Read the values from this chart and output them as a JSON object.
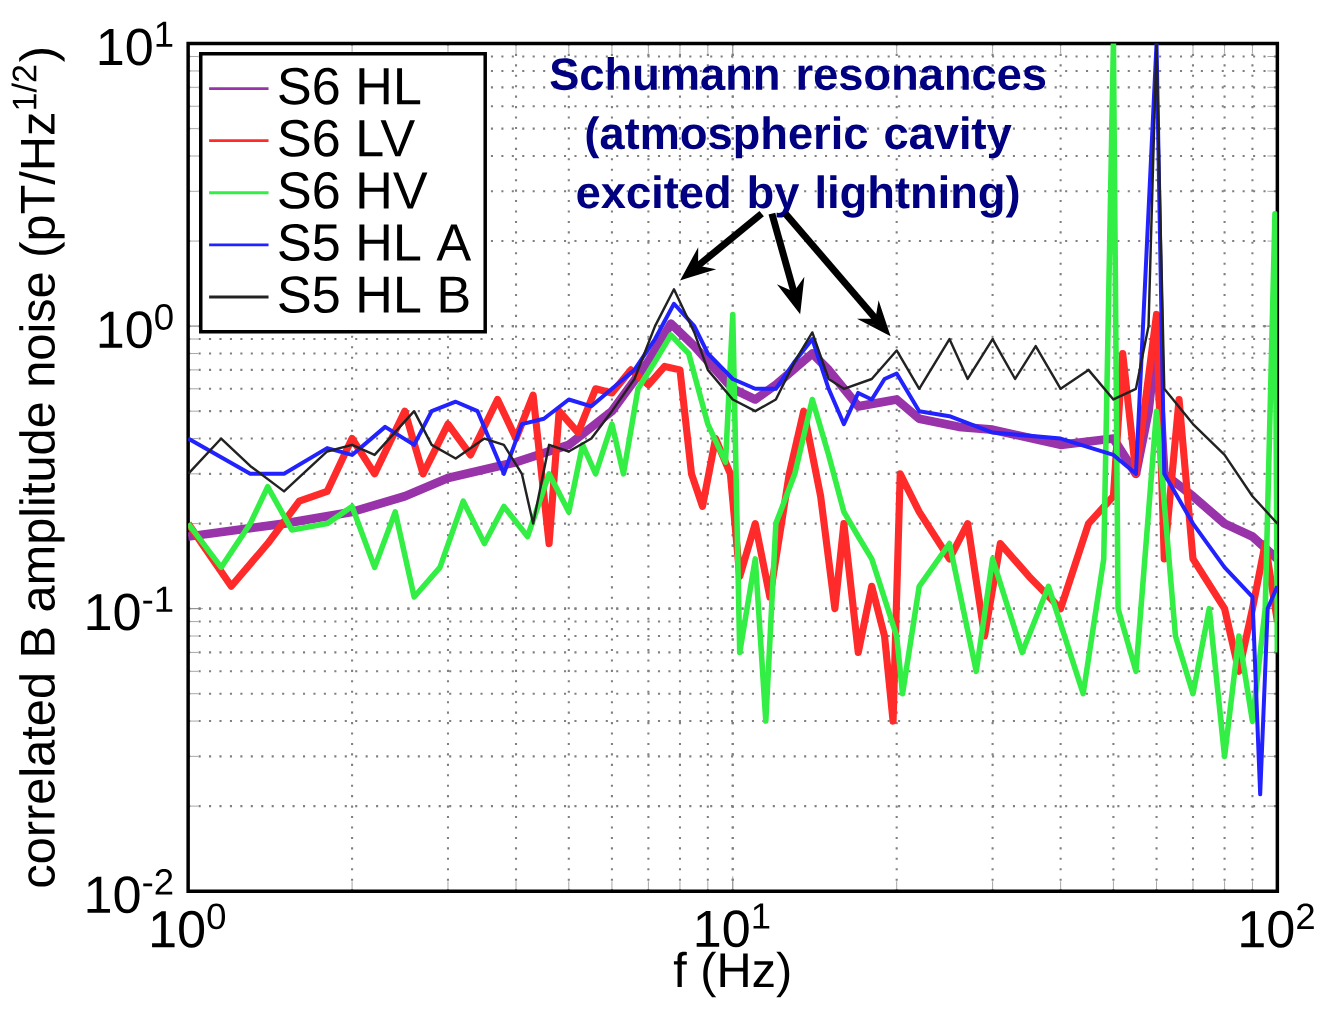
{
  "chart_data": {
    "type": "line",
    "log": "xy",
    "grid": true,
    "legend": "top left",
    "xlabel": "f (Hz)",
    "ylabel": "correlated B amplitude noise (pT/Hz$^{1/2}$)",
    "xlim": [
      1,
      100
    ],
    "ylim": [
      0.01,
      10
    ],
    "xticks": [
      {
        "value": 1,
        "label": "10$^{0}$"
      },
      {
        "value": 10,
        "label": "10$^{1}$"
      },
      {
        "value": 100,
        "label": "10$^{2}$"
      }
    ],
    "yticks": [
      {
        "value": 0.01,
        "label": "10$^{-2}$"
      },
      {
        "value": 0.1,
        "label": "10$^{-1}$"
      },
      {
        "value": 1,
        "label": "10$^{0}$"
      },
      {
        "value": 10,
        "label": "10$^{1}$"
      }
    ],
    "annotations": [
      "Schumann resonances (atmospheric cavity excited by lightning)"
    ],
    "series": [
      {
        "name": "S6 HL",
        "color": "#9933aa",
        "x": [
          1,
          1.5,
          2,
          2.5,
          3,
          4,
          5,
          6,
          7,
          7.7,
          8.5,
          10,
          11,
          12,
          14,
          15,
          17,
          20,
          22,
          26,
          30,
          40,
          50,
          55,
          58,
          60,
          62,
          70,
          80,
          90,
          100
        ],
        "values": [
          0.18,
          0.2,
          0.22,
          0.25,
          0.29,
          0.33,
          0.38,
          0.5,
          0.75,
          1.02,
          0.85,
          0.6,
          0.55,
          0.62,
          0.8,
          0.7,
          0.52,
          0.55,
          0.47,
          0.44,
          0.43,
          0.38,
          0.4,
          0.3,
          0.5,
          0.9,
          0.3,
          0.25,
          0.2,
          0.18,
          0.15
        ]
      },
      {
        "name": "S6 LV",
        "color": "#ff2a2a",
        "x": [
          1,
          1.2,
          1.4,
          1.6,
          1.8,
          2,
          2.2,
          2.5,
          2.7,
          3,
          3.3,
          3.7,
          4,
          4.3,
          4.6,
          4.8,
          5.2,
          5.6,
          6,
          6.5,
          7,
          7.5,
          8,
          8.4,
          8.8,
          9.3,
          9.9,
          10.3,
          11,
          11.7,
          12.7,
          13.5,
          14.5,
          15.4,
          16,
          17,
          18,
          19,
          19.7,
          20.3,
          22,
          25,
          27,
          29,
          31,
          35,
          40,
          45,
          50,
          52,
          55,
          60,
          62,
          66,
          70,
          80,
          85,
          90,
          95,
          100
        ],
        "values": [
          0.2,
          0.12,
          0.17,
          0.24,
          0.26,
          0.4,
          0.3,
          0.5,
          0.3,
          0.45,
          0.35,
          0.55,
          0.4,
          0.57,
          0.17,
          0.5,
          0.42,
          0.6,
          0.58,
          0.7,
          0.62,
          0.72,
          0.7,
          0.3,
          0.23,
          0.4,
          0.3,
          0.13,
          0.2,
          0.11,
          0.3,
          0.5,
          0.25,
          0.1,
          0.2,
          0.07,
          0.12,
          0.08,
          0.04,
          0.3,
          0.22,
          0.15,
          0.2,
          0.08,
          0.17,
          0.13,
          0.1,
          0.2,
          0.25,
          0.8,
          0.3,
          1.1,
          0.15,
          0.55,
          0.15,
          0.1,
          0.06,
          0.1,
          0.17,
          0.09
        ]
      },
      {
        "name": "S6 HV",
        "color": "#33ee44",
        "x": [
          1,
          1.15,
          1.3,
          1.4,
          1.55,
          1.8,
          2,
          2.2,
          2.4,
          2.6,
          2.9,
          3.2,
          3.5,
          3.8,
          4.2,
          4.6,
          5,
          5.3,
          5.6,
          6,
          6.3,
          6.7,
          7.2,
          7.7,
          8.3,
          9,
          9.7,
          10,
          10.3,
          11,
          11.5,
          12,
          13,
          14,
          15,
          16,
          17,
          18,
          20,
          20.5,
          22,
          25,
          28,
          30,
          34,
          38,
          44,
          48,
          50,
          51,
          55,
          60,
          65,
          70,
          75,
          80,
          85,
          90,
          95,
          99,
          100
        ],
        "values": [
          0.2,
          0.14,
          0.2,
          0.27,
          0.19,
          0.2,
          0.23,
          0.14,
          0.22,
          0.11,
          0.14,
          0.24,
          0.17,
          0.23,
          0.18,
          0.3,
          0.22,
          0.38,
          0.3,
          0.45,
          0.3,
          0.6,
          0.75,
          0.93,
          0.8,
          0.45,
          0.33,
          1.1,
          0.07,
          0.15,
          0.04,
          0.2,
          0.3,
          0.55,
          0.35,
          0.22,
          0.18,
          0.15,
          0.08,
          0.05,
          0.12,
          0.17,
          0.06,
          0.15,
          0.07,
          0.12,
          0.05,
          0.15,
          10,
          0.1,
          0.06,
          0.5,
          0.08,
          0.05,
          0.1,
          0.03,
          0.08,
          0.04,
          0.1,
          2.5,
          0.07
        ]
      },
      {
        "name": "S5 HL A",
        "color": "#2222ff",
        "x": [
          1,
          1.3,
          1.5,
          1.8,
          2,
          2.3,
          2.6,
          2.8,
          3.1,
          3.4,
          3.8,
          4.1,
          4.5,
          5,
          5.5,
          6,
          6.6,
          7.2,
          7.8,
          8.5,
          9,
          10,
          11,
          12,
          13,
          14,
          15,
          16,
          17,
          18,
          19,
          20,
          22,
          25,
          30,
          40,
          50,
          55,
          60,
          62,
          70,
          80,
          90,
          93,
          96,
          100
        ],
        "values": [
          0.4,
          0.3,
          0.3,
          0.37,
          0.35,
          0.44,
          0.38,
          0.5,
          0.54,
          0.5,
          0.3,
          0.45,
          0.47,
          0.55,
          0.52,
          0.6,
          0.7,
          0.9,
          1.2,
          1.0,
          0.8,
          0.65,
          0.6,
          0.6,
          0.75,
          0.9,
          0.6,
          0.45,
          0.58,
          0.55,
          0.65,
          0.68,
          0.5,
          0.48,
          0.42,
          0.4,
          0.35,
          0.3,
          10,
          0.3,
          0.2,
          0.14,
          0.11,
          0.022,
          0.1,
          0.12
        ]
      },
      {
        "name": "S5 HL B",
        "color": "#222222",
        "x": [
          1,
          1.15,
          1.3,
          1.5,
          1.8,
          2,
          2.2,
          2.6,
          2.8,
          3.1,
          3.5,
          3.8,
          4.1,
          4.3,
          4.6,
          5,
          5.5,
          6,
          6.6,
          7.2,
          7.8,
          8.5,
          9,
          10,
          11,
          12,
          13,
          14,
          15,
          16,
          18,
          20,
          22,
          25,
          27,
          30,
          33,
          36,
          40,
          45,
          50,
          55,
          58,
          60,
          62,
          70,
          80,
          90,
          100
        ],
        "values": [
          0.3,
          0.4,
          0.32,
          0.26,
          0.36,
          0.38,
          0.35,
          0.5,
          0.38,
          0.34,
          0.4,
          0.38,
          0.3,
          0.2,
          0.38,
          0.36,
          0.4,
          0.5,
          0.65,
          1.0,
          1.35,
          0.95,
          0.7,
          0.55,
          0.5,
          0.55,
          0.75,
          0.95,
          0.65,
          0.6,
          0.65,
          0.82,
          0.6,
          0.9,
          0.65,
          0.9,
          0.65,
          0.85,
          0.6,
          0.7,
          0.55,
          0.6,
          1.0,
          10,
          0.6,
          0.45,
          0.35,
          0.25,
          0.2
        ]
      }
    ]
  }
}
